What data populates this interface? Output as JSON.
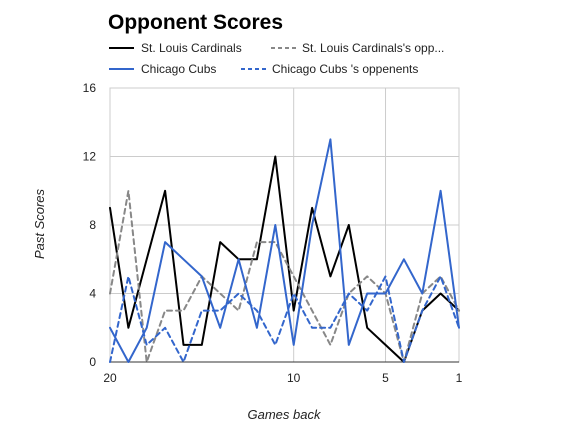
{
  "chart_data": {
    "type": "line",
    "title": "Opponent Scores",
    "xlabel": "Games back",
    "ylabel": "Past Scores",
    "ylim": [
      0,
      16
    ],
    "xlim": [
      20,
      1
    ],
    "x_reversed": true,
    "yticks": [
      "0",
      "4",
      "8",
      "12",
      "16"
    ],
    "xticks": [
      "20",
      "10",
      "5",
      "1"
    ],
    "xtick_values": [
      20,
      10,
      5,
      1
    ],
    "ytick_values": [
      0,
      4,
      8,
      12,
      16
    ],
    "grid": true,
    "legend_position": "top",
    "x": [
      20,
      19,
      18,
      17,
      16,
      15,
      14,
      13,
      12,
      11,
      10,
      9,
      8,
      7,
      6,
      5,
      4,
      3,
      2,
      1
    ],
    "series": [
      {
        "name": "St. Louis Cardinals",
        "color": "#000000",
        "dash": false,
        "values": [
          9,
          2,
          6,
          10,
          1,
          1,
          7,
          6,
          6,
          12,
          3,
          9,
          5,
          8,
          2,
          1,
          0,
          3,
          4,
          3
        ]
      },
      {
        "name": "St. Louis Cardinals's opp...",
        "color": "#888888",
        "dash": true,
        "values": [
          4,
          10,
          0,
          3,
          3,
          5,
          4,
          3,
          7,
          7,
          5,
          3,
          1,
          4,
          5,
          4,
          0,
          4,
          5,
          3
        ]
      },
      {
        "name": "Chicago Cubs",
        "color": "#3366cc",
        "dash": false,
        "values": [
          2,
          0,
          2,
          7,
          6,
          5,
          2,
          6,
          2,
          8,
          1,
          8,
          13,
          1,
          4,
          4,
          6,
          4,
          10,
          2
        ]
      },
      {
        "name": "Chicago Cubs 's oppenents",
        "color": "#3366cc",
        "dash": true,
        "values": [
          0,
          5,
          1,
          2,
          0,
          3,
          3,
          4,
          3,
          1,
          4,
          2,
          2,
          4,
          3,
          5,
          0,
          3,
          5,
          2
        ]
      }
    ]
  }
}
